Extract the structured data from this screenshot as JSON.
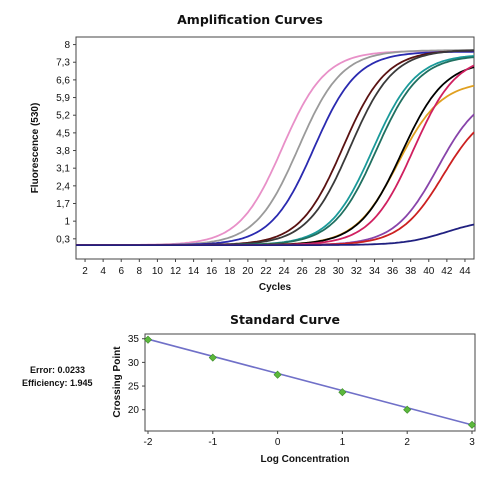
{
  "chart_data": [
    {
      "type": "line",
      "title": "Amplification Curves",
      "xlabel": "Cycles",
      "ylabel": "Fluorescence (530)",
      "xlim": [
        1,
        45
      ],
      "ylim": [
        -0.5,
        8.3
      ],
      "x_ticks": [
        "2",
        "4",
        "6",
        "8",
        "10",
        "12",
        "14",
        "16",
        "18",
        "20",
        "22",
        "24",
        "26",
        "28",
        "30",
        "32",
        "34",
        "36",
        "38",
        "40",
        "42",
        "44"
      ],
      "y_ticks": [
        "8",
        "7,3",
        "6,6",
        "5,9",
        "5,2",
        "4,5",
        "3,8",
        "3,1",
        "2,4",
        "1,7",
        "1",
        "0,3"
      ],
      "grid": false,
      "legend": "none",
      "series": [
        {
          "color": "#e890c8",
          "midpoint": 23.8,
          "plateau": 7.75,
          "slope": 0.42
        },
        {
          "color": "#9a9a9a",
          "midpoint": 25.6,
          "plateau": 7.78,
          "slope": 0.42
        },
        {
          "color": "#2a2ab0",
          "midpoint": 27.3,
          "plateau": 7.72,
          "slope": 0.42
        },
        {
          "color": "#5a1212",
          "midpoint": 30.5,
          "plateau": 7.78,
          "slope": 0.42
        },
        {
          "color": "#3a3a3a",
          "midpoint": 31.3,
          "plateau": 7.8,
          "slope": 0.42
        },
        {
          "color": "#1a9a9a",
          "midpoint": 33.8,
          "plateau": 7.62,
          "slope": 0.42
        },
        {
          "color": "#207060",
          "midpoint": 34.2,
          "plateau": 7.58,
          "slope": 0.42
        },
        {
          "color": "#e0a020",
          "midpoint": 36.6,
          "plateau": 6.55,
          "slope": 0.42
        },
        {
          "color": "#000000",
          "midpoint": 37.0,
          "plateau": 7.35,
          "slope": 0.42
        },
        {
          "color": "#d02060",
          "midpoint": 38.3,
          "plateau": 7.6,
          "slope": 0.42
        },
        {
          "color": "#8844aa",
          "midpoint": 41.0,
          "plateau": 6.2,
          "slope": 0.42
        },
        {
          "color": "#cc2020",
          "midpoint": 41.6,
          "plateau": 5.6,
          "slope": 0.42
        },
        {
          "color": "#202080",
          "midpoint": 42.0,
          "plateau": 1.1,
          "slope": 0.42
        }
      ],
      "baseline": 0.05
    },
    {
      "type": "scatter",
      "title": "Standard Curve",
      "xlabel": "Log Concentration",
      "ylabel": "Crossing Point",
      "xlim": [
        -2,
        3
      ],
      "ylim": [
        15.5,
        36
      ],
      "x_ticks": [
        "-2",
        "-1",
        "0",
        "1",
        "2",
        "3"
      ],
      "y_ticks": [
        "35",
        "30",
        "25",
        "20"
      ],
      "points": [
        {
          "x": -2,
          "y": 34.8
        },
        {
          "x": -1,
          "y": 31.0
        },
        {
          "x": 0,
          "y": 27.4
        },
        {
          "x": 1,
          "y": 23.7
        },
        {
          "x": 2,
          "y": 20.0
        },
        {
          "x": 3,
          "y": 16.8
        }
      ],
      "fit_line": {
        "x": [
          -2,
          3
        ],
        "y": [
          34.9,
          16.8
        ],
        "color": "#7070c8"
      },
      "marker_color": "#5cb83c"
    }
  ],
  "stats": {
    "error": "Error: 0.0233",
    "efficiency": "Efficiency: 1.945"
  }
}
